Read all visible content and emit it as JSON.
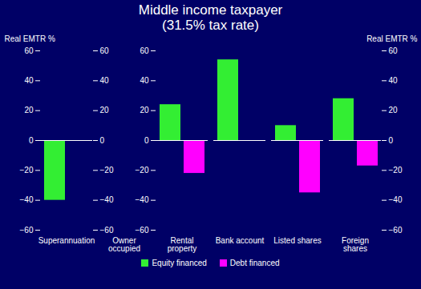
{
  "chart_data": {
    "type": "bar",
    "title": "Middle income taxpayer",
    "subtitle": "(31.5% tax rate)",
    "y_label": "Real EMTR %",
    "categories": [
      "Superannuation",
      "Owner occupied",
      "Rental property",
      "Bank account",
      "Listed shares",
      "Foreign shares"
    ],
    "series": [
      {
        "name": "Equity financed",
        "color": "#33ee33",
        "values": [
          -40,
          null,
          24,
          54,
          10,
          28
        ]
      },
      {
        "name": "Debt financed",
        "color": "#ff00ff",
        "values": [
          null,
          null,
          -22,
          null,
          -35,
          -17
        ]
      }
    ],
    "ylim": [
      -60,
      60
    ],
    "yticks": [
      -60,
      -40,
      -20,
      0,
      20,
      40,
      60
    ],
    "grid": false,
    "legend": "bottom"
  }
}
